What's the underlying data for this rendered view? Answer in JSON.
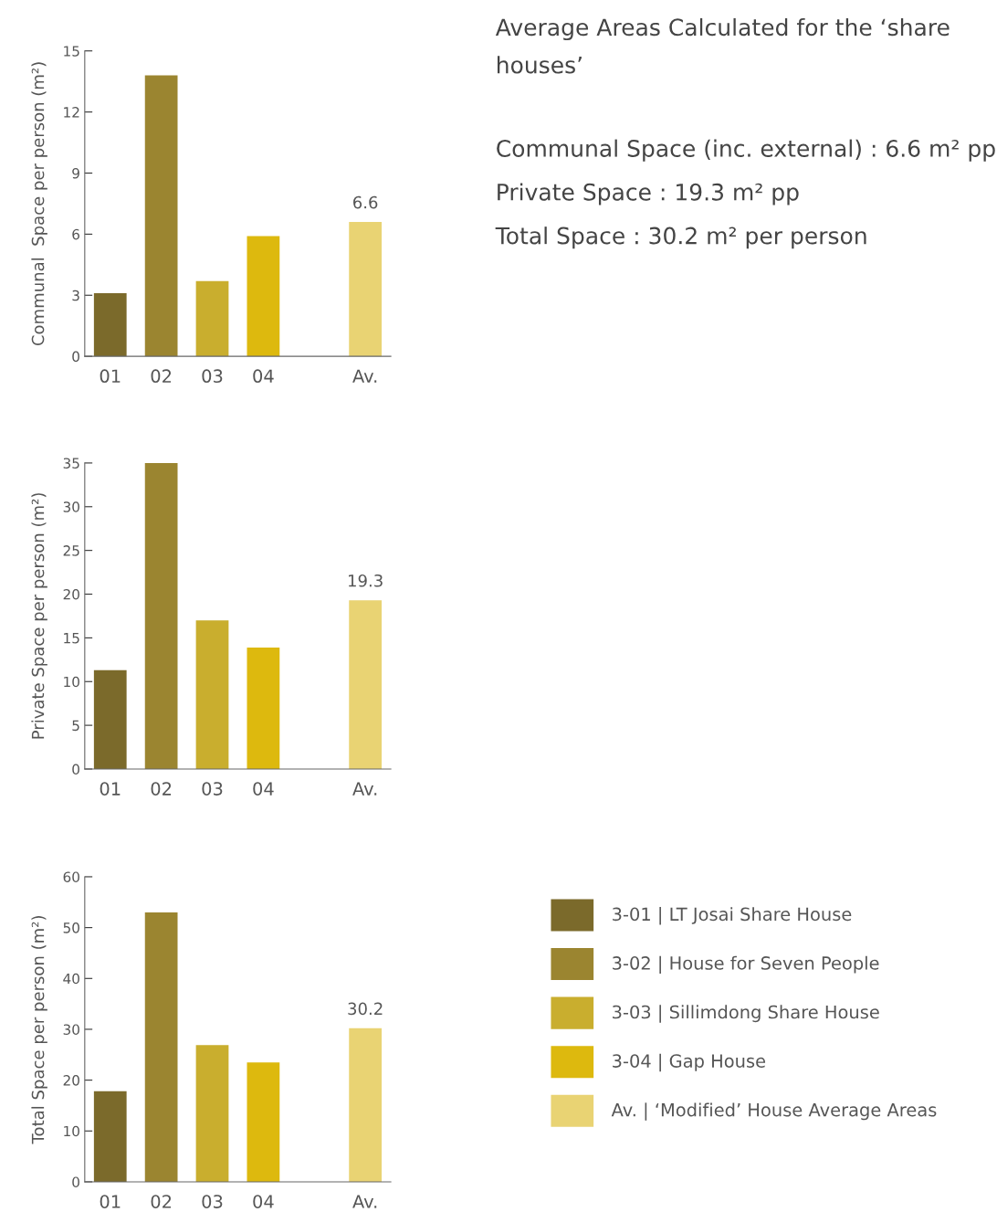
{
  "chart_data": [
    {
      "type": "bar",
      "ylabel": "Communal  Space per person (m²)",
      "categories": [
        "01",
        "02",
        "03",
        "04",
        null,
        "Av."
      ],
      "ylim": [
        0,
        15
      ],
      "yticks": [
        0,
        3,
        6,
        9,
        12,
        15
      ],
      "grid": false,
      "legend": false,
      "series": [
        {
          "color": "#7b6a2b",
          "values": [
            3.1,
            null,
            null,
            null,
            null,
            null
          ]
        },
        {
          "color": "#9b8530",
          "values": [
            null,
            13.8,
            null,
            null,
            null,
            null
          ]
        },
        {
          "color": "#c9ae2e",
          "values": [
            null,
            null,
            3.7,
            null,
            null,
            null
          ]
        },
        {
          "color": "#ddb90e",
          "values": [
            null,
            null,
            null,
            5.9,
            null,
            null
          ]
        },
        {
          "color": "#e9d373",
          "values": [
            null,
            null,
            null,
            null,
            null,
            6.6
          ],
          "value_labels": [
            null,
            null,
            null,
            null,
            null,
            "6.6"
          ]
        }
      ]
    },
    {
      "type": "other",
      "title": "Average Areas Calculated for the ‘share houses’",
      "annotations": [
        "Communal Space (inc. external) : 6.6 m² pp",
        "Private Space : 19.3 m² pp",
        "Total Space : 30.2 m² per person"
      ]
    },
    {
      "type": "bar",
      "ylabel": "Private Space per person (m²)",
      "categories": [
        "01",
        "02",
        "03",
        "04",
        null,
        "Av."
      ],
      "ylim": [
        0,
        35
      ],
      "yticks": [
        0,
        5,
        10,
        15,
        20,
        25,
        30,
        35
      ],
      "grid": false,
      "legend": false,
      "series": [
        {
          "color": "#7b6a2b",
          "values": [
            11.3,
            null,
            null,
            null,
            null,
            null
          ]
        },
        {
          "color": "#9b8530",
          "values": [
            null,
            35.0,
            null,
            null,
            null,
            null
          ]
        },
        {
          "color": "#c9ae2e",
          "values": [
            null,
            null,
            17.0,
            null,
            null,
            null
          ]
        },
        {
          "color": "#ddb90e",
          "values": [
            null,
            null,
            null,
            13.9,
            null,
            null
          ]
        },
        {
          "color": "#e9d373",
          "values": [
            null,
            null,
            null,
            null,
            null,
            19.3
          ],
          "value_labels": [
            null,
            null,
            null,
            null,
            null,
            "19.3"
          ]
        }
      ]
    },
    {
      "type": "bar",
      "ylabel": "Total Space per person (m²)",
      "categories": [
        "01",
        "02",
        "03",
        "04",
        null,
        "Av."
      ],
      "ylim": [
        0,
        60
      ],
      "yticks": [
        0,
        10,
        20,
        30,
        40,
        50,
        60
      ],
      "grid": false,
      "legend": "right",
      "series": [
        {
          "name": "3-01 | LT Josai Share House",
          "color": "#7b6a2b",
          "values": [
            17.8,
            null,
            null,
            null,
            null,
            null
          ]
        },
        {
          "name": "3-02 | House for Seven People",
          "color": "#9b8530",
          "values": [
            null,
            53.0,
            null,
            null,
            null,
            null
          ]
        },
        {
          "name": "3-03 | Sillimdong Share House",
          "color": "#c9ae2e",
          "values": [
            null,
            null,
            26.9,
            null,
            null,
            null
          ]
        },
        {
          "name": "3-04 | Gap House",
          "color": "#ddb90e",
          "values": [
            null,
            null,
            null,
            23.5,
            null,
            null
          ]
        },
        {
          "name": "Av. | ‘Modified’ House Average Areas",
          "color": "#e9d373",
          "values": [
            null,
            null,
            null,
            null,
            null,
            30.2
          ],
          "value_labels": [
            null,
            null,
            null,
            null,
            null,
            "30.2"
          ]
        }
      ]
    }
  ]
}
